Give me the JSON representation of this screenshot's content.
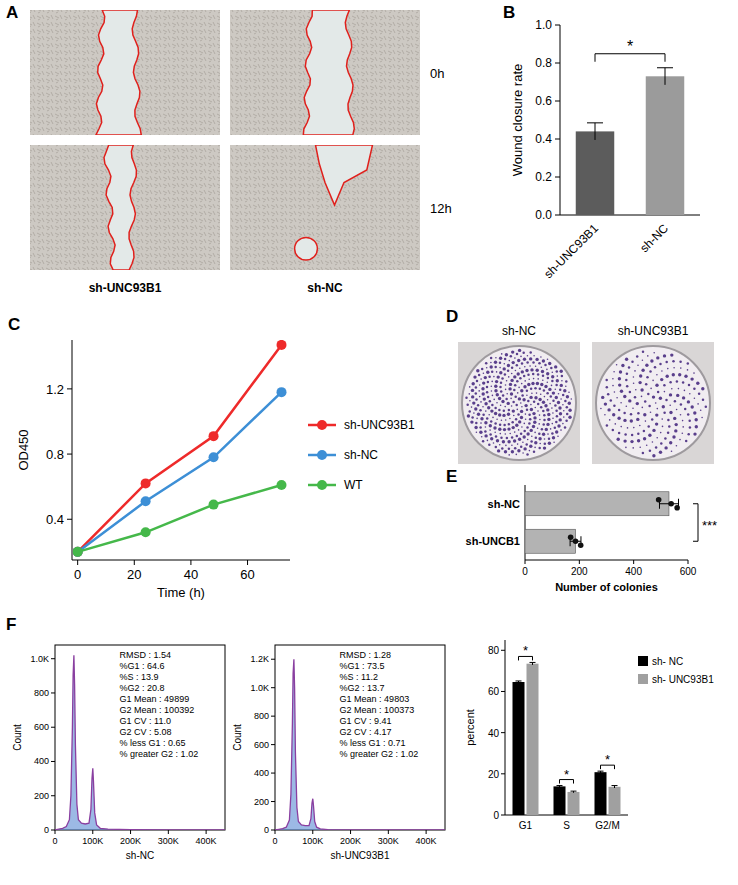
{
  "wound_images": {
    "panel_label": "A",
    "time_labels": [
      "0h",
      "12h"
    ],
    "group_labels": [
      "sh-UNC93B1",
      "sh-NC"
    ]
  },
  "colony_images": {
    "panel_label": "D",
    "labels": [
      "sh-NC",
      "sh-UNC93B1"
    ]
  },
  "chart_data": [
    {
      "panel_label": "B",
      "type": "bar",
      "categories": [
        "sh-UNC93B1",
        "sh-NC"
      ],
      "values": [
        0.44,
        0.73
      ],
      "errors": [
        0.045,
        0.045
      ],
      "colors": [
        "#5c5c5c",
        "#9b9b9b"
      ],
      "y_label": "Wound closure rate",
      "ylim": [
        0,
        1
      ],
      "yticks": [
        {
          "value": 0,
          "label": "0.0"
        },
        {
          "value": 0.2,
          "label": "0.2"
        },
        {
          "value": 0.4,
          "label": "0.4"
        },
        {
          "value": 0.6,
          "label": "0.6"
        },
        {
          "value": 0.8,
          "label": "0.8"
        },
        {
          "value": 1,
          "label": "1.0"
        }
      ],
      "significance": "*"
    },
    {
      "panel_label": "C",
      "type": "line",
      "x": [
        0,
        24,
        48,
        72
      ],
      "series": [
        {
          "name": "sh-UNC93B1",
          "color": "#ee2a2a",
          "values": [
            0.2,
            0.62,
            0.91,
            1.47
          ]
        },
        {
          "name": "sh-NC",
          "color": "#3d8fd6",
          "values": [
            0.2,
            0.51,
            0.78,
            1.18
          ]
        },
        {
          "name": "WT",
          "color": "#45b84a",
          "values": [
            0.2,
            0.32,
            0.49,
            0.61
          ]
        }
      ],
      "x_label": "Time (h)",
      "y_label": "OD450",
      "xlim": [
        -2,
        75
      ],
      "xticks": [
        0,
        20,
        40,
        60
      ],
      "ylim": [
        0.15,
        1.5
      ],
      "yticks": [
        0.4,
        0.8,
        1.2
      ],
      "legend": "right",
      "marker": "circle"
    },
    {
      "panel_label": "E",
      "type": "bar",
      "orientation": "horizontal",
      "categories": [
        "sh-NC",
        "sh-UNCB1"
      ],
      "values": [
        530,
        186
      ],
      "errors": [
        35,
        20
      ],
      "points": [
        [
          492,
          538,
          560
        ],
        [
          168,
          186,
          205
        ]
      ],
      "color": "#b3b3b3",
      "x_label": "Number of colonies",
      "xlim": [
        0,
        600
      ],
      "xticks": [
        0,
        200,
        400,
        600
      ],
      "significance": "***"
    },
    {
      "panel_label": "F",
      "type": "area",
      "x": [
        0,
        10000,
        20000,
        30000,
        38000,
        42000,
        46000,
        48000,
        50000,
        52000,
        54000,
        58000,
        62000,
        70000,
        80000,
        90000,
        95000,
        98000,
        100000,
        102000,
        105000,
        110000,
        120000,
        140000,
        200000,
        300000,
        450000
      ],
      "values": [
        0,
        5,
        10,
        20,
        60,
        200,
        600,
        900,
        1020,
        850,
        500,
        150,
        60,
        40,
        35,
        40,
        120,
        300,
        360,
        280,
        100,
        30,
        10,
        5,
        2,
        0,
        0
      ],
      "color": "#8a3fa0",
      "x_label": "sh-NC",
      "y_label": "Count",
      "xlim": [
        0,
        450000
      ],
      "xticks": [
        0,
        {
          "value": 100000,
          "label": "100K"
        },
        {
          "value": 200000,
          "label": "200K"
        },
        {
          "value": 300000,
          "label": "300K"
        },
        {
          "value": 400000,
          "label": "400K"
        }
      ],
      "ylim": [
        0,
        1080
      ],
      "yticks": [
        0,
        200,
        400,
        600,
        800,
        {
          "value": 1000,
          "label": "1.0K"
        }
      ],
      "stats": [
        "RMSD : 1.54",
        "%G1 : 64.6",
        "%S : 13.9",
        "%G2 : 20.8",
        "G1 Mean : 49899",
        "G2 Mean : 100392",
        "G1 CV : 11.0",
        "G2 CV : 5.08",
        "% less G1 : 0.65",
        "% greater G2 : 1.02"
      ]
    },
    {
      "type": "area",
      "x": [
        0,
        10000,
        20000,
        30000,
        38000,
        42000,
        46000,
        48000,
        50000,
        52000,
        54000,
        58000,
        62000,
        70000,
        80000,
        90000,
        95000,
        98000,
        100000,
        102000,
        105000,
        110000,
        120000,
        140000,
        200000,
        300000,
        450000
      ],
      "values": [
        0,
        5,
        10,
        20,
        70,
        250,
        750,
        1100,
        1200,
        1000,
        550,
        160,
        60,
        35,
        30,
        30,
        80,
        190,
        220,
        170,
        60,
        20,
        8,
        3,
        1,
        0,
        0
      ],
      "color": "#8a3fa0",
      "x_label": "sh-UNC93B1",
      "y_label": "Count",
      "xlim": [
        0,
        450000
      ],
      "xticks": [
        0,
        {
          "value": 100000,
          "label": "100K"
        },
        {
          "value": 200000,
          "label": "200K"
        },
        {
          "value": 300000,
          "label": "300K"
        },
        {
          "value": 400000,
          "label": "400K"
        }
      ],
      "ylim": [
        0,
        1300
      ],
      "yticks": [
        0,
        200,
        400,
        600,
        800,
        {
          "value": 1000,
          "label": "1.0K"
        },
        {
          "value": 1200,
          "label": "1.2K"
        }
      ],
      "stats": [
        "RMSD : 1.28",
        "%G1 : 73.5",
        "%S : 11.2",
        "%G2 : 13.7",
        "G1 Mean : 49803",
        "G2 Mean : 100373",
        "G1 CV : 9.41",
        "G2 CV : 4.17",
        "% less G1 : 0.71",
        "% greater G2 : 1.02"
      ]
    },
    {
      "type": "bar",
      "categories": [
        "G1",
        "S",
        "G2/M"
      ],
      "series": [
        {
          "name": "sh- NC",
          "color": "#000000",
          "values": [
            64.6,
            13.9,
            20.8
          ],
          "errors": [
            0.5,
            0.4,
            0.5
          ]
        },
        {
          "name": "sh- UNC93B1",
          "color": "#a0a0a0",
          "values": [
            73.5,
            11.2,
            13.7
          ],
          "errors": [
            0.6,
            0.4,
            0.6
          ]
        }
      ],
      "y_label": "percent",
      "ylim": [
        0,
        85
      ],
      "yticks": [
        0,
        20,
        40,
        60,
        80
      ],
      "legend": "right",
      "significance": [
        "*",
        "*",
        "*"
      ]
    }
  ]
}
